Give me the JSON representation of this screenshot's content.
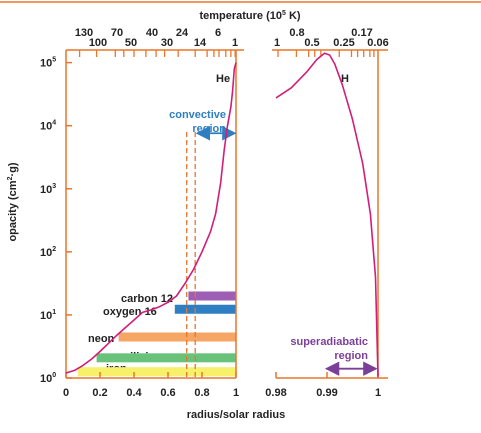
{
  "chart_data": {
    "type": "line",
    "top_axis": {
      "label": "temperature (10",
      "label_sup": "5",
      "label_tail": " K)",
      "left_ticks_upper": [
        "130",
        "70",
        "40",
        "24",
        "6"
      ],
      "left_ticks_lower": [
        "100",
        "50",
        "30",
        "14",
        "1"
      ],
      "right_ticks_upper": [
        "0.8",
        "0.17"
      ],
      "right_ticks_lower": [
        "1",
        "0.5",
        "0.25",
        "0.06"
      ]
    },
    "ylabel": "opacity (cm",
    "ylabel_sup": "2",
    "ylabel_tail": "·g)",
    "y_ticks": [
      {
        "base": "10",
        "exp": "0",
        "value": 0
      },
      {
        "base": "10",
        "exp": "1",
        "value": 1
      },
      {
        "base": "10",
        "exp": "2",
        "value": 2
      },
      {
        "base": "10",
        "exp": "3",
        "value": 3
      },
      {
        "base": "10",
        "exp": "4",
        "value": 4
      },
      {
        "base": "10",
        "exp": "5",
        "value": 5
      }
    ],
    "ylim_log10": [
      0,
      5.2
    ],
    "xlabel": "radius/solar radius",
    "left_panel": {
      "xlim": [
        0,
        1
      ],
      "x_ticks": [
        "0",
        "0.2",
        "0.4",
        "0.6",
        "0.8",
        "1"
      ],
      "x_tick_values": [
        0,
        0.2,
        0.4,
        0.6,
        0.8,
        1
      ],
      "curve": {
        "x": [
          0,
          0.05,
          0.1,
          0.15,
          0.2,
          0.25,
          0.3,
          0.35,
          0.4,
          0.45,
          0.5,
          0.55,
          0.6,
          0.65,
          0.7,
          0.75,
          0.8,
          0.85,
          0.88,
          0.91,
          0.93,
          0.95,
          0.97,
          0.98,
          0.99,
          1.0
        ],
        "log10_opacity": [
          0.08,
          0.12,
          0.2,
          0.3,
          0.42,
          0.55,
          0.68,
          0.8,
          0.92,
          1.04,
          1.08,
          1.13,
          1.2,
          1.3,
          1.5,
          1.72,
          2.0,
          2.32,
          2.6,
          3.1,
          3.6,
          4.0,
          4.3,
          4.55,
          4.9,
          5.0
        ]
      },
      "element_labels": [
        "carbon 12",
        "oxygen 16",
        "neon",
        "silicium",
        "iron"
      ],
      "element_bands": [
        {
          "label": "carbon 12",
          "color": "#9e5eb6",
          "x_start": 0.72,
          "x_end": 1.0,
          "log10_opacity": 1.3
        },
        {
          "label": "oxygen 16",
          "color": "#2e7ec2",
          "x_start": 0.64,
          "x_end": 1.0,
          "log10_opacity": 1.09
        },
        {
          "label": "neon",
          "color": "#f5a664",
          "x_start": 0.31,
          "x_end": 1.0,
          "log10_opacity": 0.65
        },
        {
          "label": "silicium",
          "color": "#69c27a",
          "x_start": 0.18,
          "x_end": 1.0,
          "log10_opacity": 0.32
        },
        {
          "label": "iron",
          "color": "#f6f06a",
          "x_start": 0.07,
          "x_end": 1.0,
          "log10_opacity": 0.1
        }
      ],
      "convective_region": {
        "label_line1": "convective",
        "label_line2": "region",
        "x_start": 0.76,
        "x_end": 1.0,
        "log10_opacity": 3.88
      },
      "dashed_lines_x": [
        0.71,
        0.76
      ],
      "he_label": "He"
    },
    "right_panel": {
      "xlim": [
        0.98,
        1.0
      ],
      "x_ticks": [
        "0.98",
        "0.99",
        "1"
      ],
      "x_tick_values": [
        0.98,
        0.99,
        1.0
      ],
      "curve": {
        "x": [
          0.98,
          0.983,
          0.986,
          0.988,
          0.9895,
          0.9905,
          0.9915,
          0.993,
          0.995,
          0.997,
          0.9985,
          0.9995,
          1.0
        ],
        "log10_opacity": [
          4.44,
          4.6,
          4.85,
          5.05,
          5.15,
          5.12,
          4.98,
          4.65,
          4.1,
          3.4,
          2.6,
          1.6,
          0.02
        ]
      },
      "h_label": "H",
      "superadiabatic": {
        "label_line1": "superadiabatic",
        "label_line2": "region",
        "x_start": 0.9895,
        "x_end": 1.0,
        "log10_opacity": 0.1
      }
    },
    "colors": {
      "curve": "#d21e78",
      "axis": "#e8762c",
      "convective": "#2e7ec2",
      "superadiabatic": "#7b3f98"
    }
  }
}
